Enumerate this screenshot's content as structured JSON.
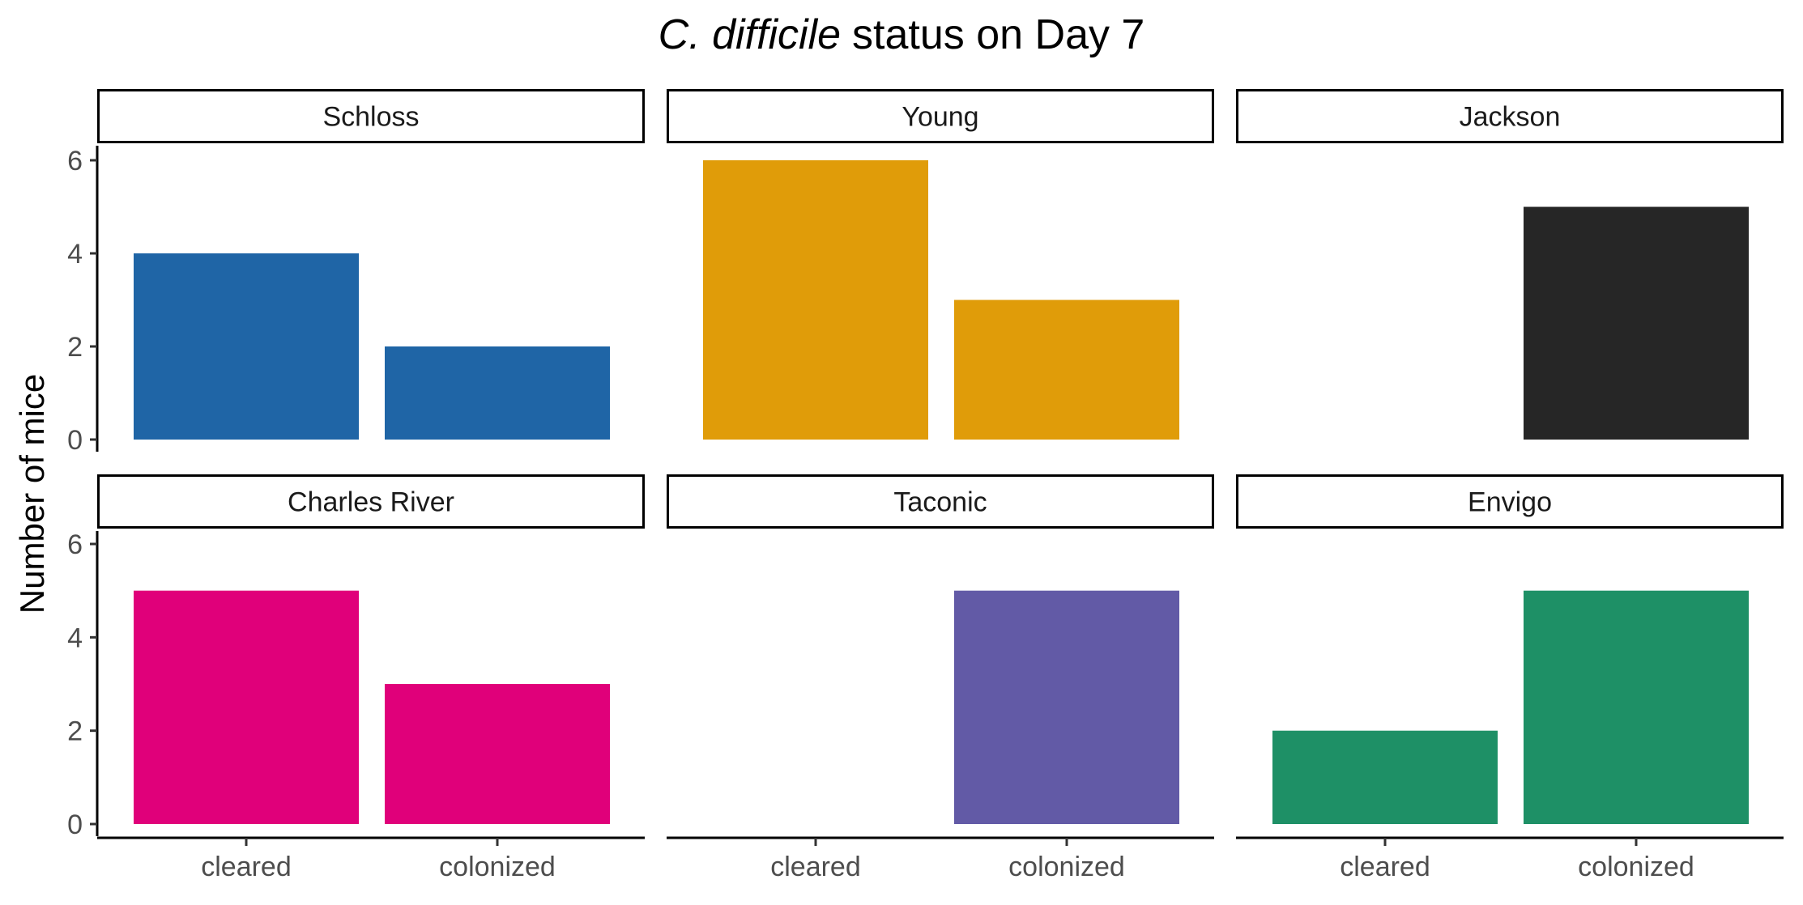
{
  "chart_data": {
    "type": "bar",
    "title": {
      "italic": "C. difficile",
      "rest": "status on Day 7"
    },
    "xlabel": "",
    "ylabel": "Number of mice",
    "categories": [
      "cleared",
      "colonized"
    ],
    "ylim": [
      0,
      6
    ],
    "yticks": [
      0,
      2,
      4,
      6
    ],
    "grid": false,
    "legend": "none",
    "facets": [
      {
        "name": "Schloss",
        "color": "#1F65A6",
        "values": [
          4,
          2
        ]
      },
      {
        "name": "Young",
        "color": "#E09C09",
        "values": [
          6,
          3
        ]
      },
      {
        "name": "Jackson",
        "color": "#262626",
        "values": [
          0,
          5
        ]
      },
      {
        "name": "Charles River",
        "color": "#E0007A",
        "values": [
          5,
          3
        ]
      },
      {
        "name": "Taconic",
        "color": "#625AA6",
        "values": [
          0,
          5
        ]
      },
      {
        "name": "Envigo",
        "color": "#1E9066",
        "values": [
          2,
          5
        ]
      }
    ]
  }
}
